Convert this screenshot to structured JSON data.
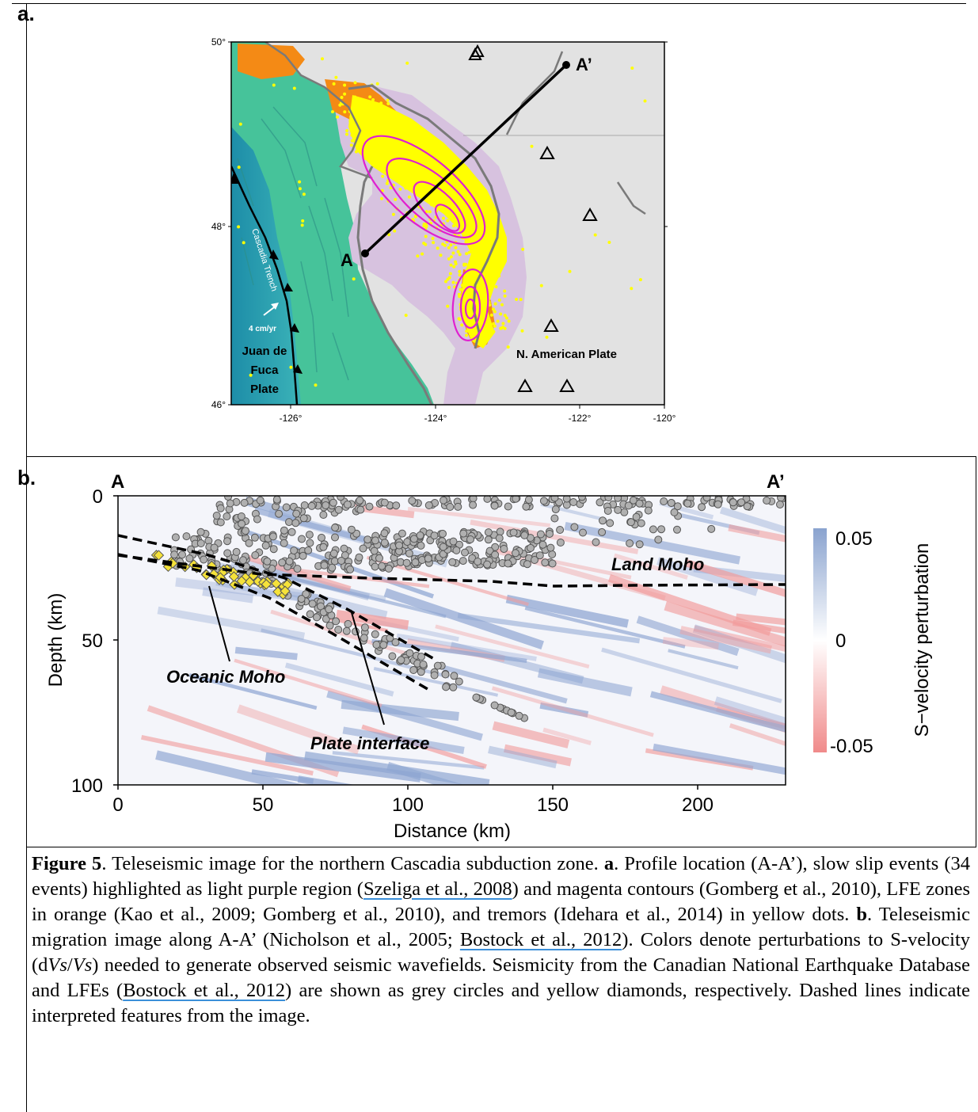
{
  "panel_a": {
    "label": "a.",
    "lat_ticks": [
      "50°",
      "48°",
      "46°"
    ],
    "lon_ticks": [
      "-126°",
      "-124°",
      "-122°",
      "-120°"
    ],
    "profile_start": "A",
    "profile_end": "A’",
    "trench_label": "Cascadia Trench",
    "velocity_label": "4 cm/yr",
    "plate_left": [
      "Juan de",
      "Fuca",
      "Plate"
    ],
    "plate_right": "N. American Plate",
    "colors": {
      "ocean": "#2a9fb0",
      "shelf": "#43c29a",
      "land": "#e4e4e4",
      "sse": "#d9c4e0",
      "lfe": "#f58a12",
      "tremor": "#ffff00",
      "contour": "#e020d0"
    }
  },
  "panel_b": {
    "label": "b.",
    "profile_start": "A",
    "profile_end": "A’",
    "xlabel": "Distance (km)",
    "ylabel": "Depth (km)",
    "x_ticks": [
      "0",
      "50",
      "100",
      "150",
      "200"
    ],
    "y_ticks": [
      "0",
      "50",
      "100"
    ],
    "land_moho": "Land Moho",
    "oceanic_moho": "Oceanic Moho",
    "plate_interface": "Plate interface",
    "colorbar_label": "S−velocity perturbation",
    "colorbar_ticks": [
      "0.05",
      "0",
      "-0.05"
    ],
    "colors": {
      "positive": "#8aa3cf",
      "negative": "#f08a8a",
      "seismicity": "#b0b0b0",
      "lfe": "#f5e23a"
    }
  },
  "caption": {
    "fig": "Figure 5",
    "t1": ". Teleseismic image for the northern Cascadia subduction zone. ",
    "a": "a",
    "t2": ". Profile location (A-A’), slow slip events (34 events) highlighted as light purple region (",
    "ref1": "Szeliga et al., 2008",
    "t3": ") and magenta contours (Gomberg et al., 2010), LFE zones in orange (Kao et al., 2009; Gomberg et al., 2010), and tremors (Idehara et al., 2014) in yellow dots. ",
    "b": "b",
    "t4": ". Teleseismic migration image along A-A’ (Nicholson et al., 2005; ",
    "ref2": "Bostock et al., 2012",
    "t5": "). Colors denote perturbations to S-velocity (d",
    "vs1": "Vs",
    "slash": "/",
    "vs2": "Vs",
    "t6": ") needed to generate observed seismic wavefields. Seismicity from the Canadian National Earthquake Database and LFEs (",
    "ref3": "Bostock et al., 2012",
    "t7": ") are shown as grey circles and yellow diamonds, respectively. Dashed lines indicate interpreted features from the image."
  }
}
